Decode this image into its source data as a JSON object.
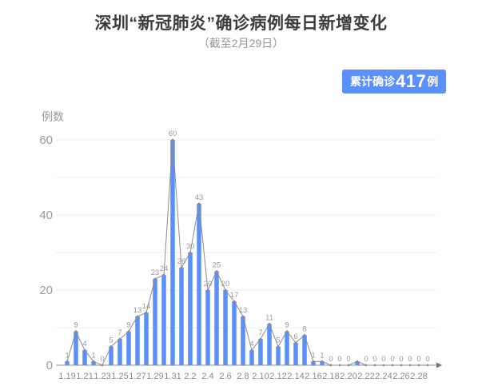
{
  "header": {
    "title": "深圳“新冠肺炎”确诊病例每日新增变化",
    "subtitle": "（截至2月29日）"
  },
  "badge": {
    "prefix": "累计确诊",
    "count": "417",
    "suffix": "例",
    "bg_color": "#5B8FF9"
  },
  "chart_data": {
    "type": "bar",
    "title": "深圳“新冠肺炎”确诊病例每日新增变化",
    "subtitle": "（截至2月29日）",
    "ylabel": "例数",
    "xlabel": "",
    "x": [
      "1.19",
      "1.20",
      "1.21",
      "1.22",
      "1.23",
      "1.24",
      "1.25",
      "1.26",
      "1.27",
      "1.28",
      "1.29",
      "1.30",
      "1.31",
      "2.1",
      "2.2",
      "2.3",
      "2.4",
      "2.5",
      "2.6",
      "2.7",
      "2.8",
      "2.9",
      "2.10",
      "2.11",
      "2.12",
      "2.13",
      "2.14",
      "2.15",
      "2.16",
      "2.17",
      "2.18",
      "2.19",
      "2.20",
      "2.21",
      "2.22",
      "2.23",
      "2.24",
      "2.25",
      "2.26",
      "2.27",
      "2.28",
      "2.29"
    ],
    "values": [
      1,
      9,
      4,
      1,
      0,
      5,
      7,
      9,
      13,
      14,
      23,
      24,
      60,
      26,
      30,
      43,
      20,
      25,
      20,
      17,
      13,
      4,
      7,
      11,
      5,
      9,
      6,
      8,
      1,
      1,
      0,
      0,
      0,
      1,
      0,
      0,
      0,
      0,
      0,
      0,
      0,
      0
    ],
    "unlabeled_points": [
      "2.21"
    ],
    "x_tick_every": 2,
    "y_ticks": [
      0,
      20,
      40,
      60
    ],
    "ylim": [
      0,
      63
    ],
    "grid_step": 10,
    "grid": true,
    "legend": "none",
    "overlay_line": true,
    "bar_color": "#5B8FF9",
    "line_color": "#8c8c8c",
    "grid_color": "#ededed",
    "axis_color": "#8c8c8c",
    "cumulative_total": 417
  }
}
